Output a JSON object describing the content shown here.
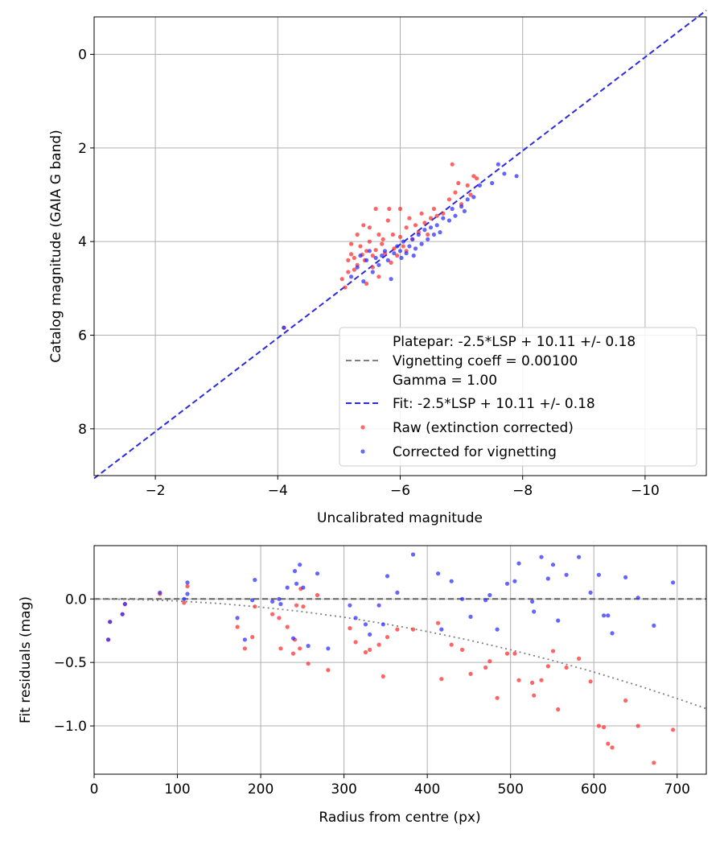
{
  "chart_data": [
    {
      "type": "scatter",
      "xlabel": "Uncalibrated magnitude",
      "ylabel": "Catalog magnitude (GAIA G band)",
      "xlim": [
        -1.0,
        -11.0
      ],
      "ylim": [
        9.0,
        -0.8
      ],
      "xticks": [
        -2,
        -4,
        -6,
        -8,
        -10
      ],
      "yticks": [
        0,
        2,
        4,
        6,
        8
      ],
      "xtick_labels": [
        "−2",
        "−4",
        "−6",
        "−8",
        "−10"
      ],
      "ytick_labels": [
        "0",
        "2",
        "4",
        "6",
        "8"
      ],
      "grid": true,
      "legend_position": "lower-right",
      "legend": [
        {
          "label": "Platepar: -2.5*LSP + 10.11 +/- 0.18",
          "kind": "none",
          "color": "#ffffff"
        },
        {
          "label": "Vignetting coeff = 0.00100",
          "kind": "dash",
          "color": "#808080"
        },
        {
          "label": "Gamma = 1.00",
          "kind": "none",
          "color": "#ffffff"
        },
        {
          "label": "Fit: -2.5*LSP + 10.11 +/- 0.18",
          "kind": "dash",
          "color": "#2a2ae0"
        },
        {
          "label": "Raw (extinction corrected)",
          "kind": "dot",
          "color": "#ff2a2a"
        },
        {
          "label": "Corrected for vignetting",
          "kind": "dot",
          "color": "#2a2aff"
        }
      ],
      "lines": [
        {
          "name": "Fit",
          "x": [
            -1.0,
            -11.0
          ],
          "y": [
            9.06,
            -0.94
          ],
          "color": "#2a2ae0"
        }
      ],
      "series": [
        {
          "name": "Raw (extinction corrected)",
          "color": "#ff2a2a",
          "points": [
            [
              -4.1,
              5.84
            ],
            [
              -5.05,
              4.8
            ],
            [
              -5.1,
              4.98
            ],
            [
              -5.15,
              4.65
            ],
            [
              -5.15,
              4.4
            ],
            [
              -5.2,
              4.27
            ],
            [
              -5.2,
              4.05
            ],
            [
              -5.25,
              4.35
            ],
            [
              -5.25,
              4.6
            ],
            [
              -5.3,
              3.85
            ],
            [
              -5.3,
              4.5
            ],
            [
              -5.35,
              4.1
            ],
            [
              -5.38,
              4.28
            ],
            [
              -5.4,
              3.65
            ],
            [
              -5.42,
              4.4
            ],
            [
              -5.45,
              4.2
            ],
            [
              -5.45,
              4.9
            ],
            [
              -5.5,
              4.0
            ],
            [
              -5.5,
              3.7
            ],
            [
              -5.55,
              4.55
            ],
            [
              -5.55,
              4.3
            ],
            [
              -5.6,
              3.3
            ],
            [
              -5.6,
              4.18
            ],
            [
              -5.65,
              3.85
            ],
            [
              -5.65,
              4.75
            ],
            [
              -5.7,
              4.05
            ],
            [
              -5.72,
              3.95
            ],
            [
              -5.75,
              4.25
            ],
            [
              -5.8,
              3.55
            ],
            [
              -5.82,
              3.3
            ],
            [
              -5.85,
              4.45
            ],
            [
              -5.88,
              3.85
            ],
            [
              -5.9,
              4.15
            ],
            [
              -5.95,
              4.3
            ],
            [
              -6.0,
              3.9
            ],
            [
              -6.0,
              3.3
            ],
            [
              -6.05,
              4.1
            ],
            [
              -6.1,
              3.7
            ],
            [
              -6.1,
              4.2
            ],
            [
              -6.15,
              3.5
            ],
            [
              -6.2,
              3.95
            ],
            [
              -6.25,
              3.65
            ],
            [
              -6.3,
              3.8
            ],
            [
              -6.35,
              3.4
            ],
            [
              -6.4,
              3.6
            ],
            [
              -6.45,
              3.85
            ],
            [
              -6.5,
              3.5
            ],
            [
              -6.55,
              3.3
            ],
            [
              -6.6,
              3.45
            ],
            [
              -6.7,
              3.4
            ],
            [
              -6.8,
              3.1
            ],
            [
              -6.85,
              2.35
            ],
            [
              -6.9,
              2.95
            ],
            [
              -6.95,
              2.75
            ],
            [
              -7.0,
              3.2
            ],
            [
              -7.1,
              2.8
            ],
            [
              -7.15,
              3.0
            ],
            [
              -7.2,
              2.6
            ],
            [
              -7.25,
              2.65
            ]
          ]
        },
        {
          "name": "Corrected for vignetting",
          "color": "#2a2aff",
          "points": [
            [
              -4.1,
              5.84
            ],
            [
              -5.2,
              4.75
            ],
            [
              -5.3,
              4.55
            ],
            [
              -5.35,
              4.3
            ],
            [
              -5.4,
              4.85
            ],
            [
              -5.45,
              4.4
            ],
            [
              -5.5,
              4.2
            ],
            [
              -5.55,
              4.65
            ],
            [
              -5.6,
              4.35
            ],
            [
              -5.65,
              4.5
            ],
            [
              -5.7,
              4.3
            ],
            [
              -5.75,
              4.2
            ],
            [
              -5.8,
              4.4
            ],
            [
              -5.85,
              4.8
            ],
            [
              -5.9,
              4.25
            ],
            [
              -5.95,
              4.1
            ],
            [
              -6.0,
              4.2
            ],
            [
              -6.02,
              4.35
            ],
            [
              -6.05,
              4.0
            ],
            [
              -6.1,
              4.25
            ],
            [
              -6.15,
              4.1
            ],
            [
              -6.2,
              3.95
            ],
            [
              -6.22,
              4.3
            ],
            [
              -6.25,
              4.15
            ],
            [
              -6.3,
              3.85
            ],
            [
              -6.35,
              4.05
            ],
            [
              -6.4,
              3.75
            ],
            [
              -6.45,
              3.95
            ],
            [
              -6.5,
              3.7
            ],
            [
              -6.55,
              3.85
            ],
            [
              -6.6,
              3.65
            ],
            [
              -6.65,
              3.8
            ],
            [
              -6.7,
              3.5
            ],
            [
              -6.8,
              3.55
            ],
            [
              -6.85,
              3.3
            ],
            [
              -6.9,
              3.45
            ],
            [
              -7.0,
              3.25
            ],
            [
              -7.05,
              3.35
            ],
            [
              -7.1,
              3.1
            ],
            [
              -7.2,
              3.05
            ],
            [
              -7.3,
              2.8
            ],
            [
              -7.5,
              2.75
            ],
            [
              -7.6,
              2.35
            ],
            [
              -7.7,
              2.55
            ],
            [
              -7.9,
              2.6
            ]
          ]
        }
      ]
    },
    {
      "type": "scatter",
      "xlabel": "Radius from centre (px)",
      "ylabel": "Fit residuals (mag)",
      "xlim": [
        0,
        735
      ],
      "ylim": [
        -1.38,
        0.42
      ],
      "xticks": [
        0,
        100,
        200,
        300,
        400,
        500,
        600,
        700
      ],
      "yticks": [
        0.0,
        -0.5,
        -1.0
      ],
      "xtick_labels": [
        "0",
        "100",
        "200",
        "300",
        "400",
        "500",
        "600",
        "700"
      ],
      "ytick_labels": [
        "0.0",
        "−0.5",
        "−1.0"
      ],
      "grid": true,
      "lines": [
        {
          "name": "zero",
          "x": [
            0,
            735
          ],
          "y": [
            0,
            0
          ],
          "color": "#606060",
          "style": "dashed"
        },
        {
          "name": "vignetting model",
          "x": [
            0,
            50,
            100,
            150,
            200,
            250,
            300,
            350,
            400,
            450,
            500,
            550,
            600,
            650,
            700,
            735
          ],
          "y": [
            0,
            -0.004,
            -0.016,
            -0.036,
            -0.064,
            -0.1,
            -0.144,
            -0.196,
            -0.256,
            -0.324,
            -0.4,
            -0.484,
            -0.576,
            -0.676,
            -0.784,
            -0.864
          ],
          "color": "#808080",
          "style": "dotted"
        }
      ],
      "series": [
        {
          "name": "Raw",
          "color": "#ff2a2a",
          "points": [
            [
              17,
              -0.32
            ],
            [
              19,
              -0.18
            ],
            [
              34,
              -0.12
            ],
            [
              37,
              -0.04
            ],
            [
              79,
              0.04
            ],
            [
              108,
              -0.03
            ],
            [
              112,
              0.1
            ],
            [
              172,
              -0.22
            ],
            [
              181,
              -0.39
            ],
            [
              190,
              -0.3
            ],
            [
              193,
              -0.06
            ],
            [
              214,
              -0.12
            ],
            [
              222,
              -0.15
            ],
            [
              224,
              -0.39
            ],
            [
              232,
              -0.22
            ],
            [
              239,
              -0.43
            ],
            [
              241,
              -0.32
            ],
            [
              243,
              -0.05
            ],
            [
              247,
              -0.39
            ],
            [
              248,
              0.08
            ],
            [
              251,
              -0.06
            ],
            [
              257,
              -0.51
            ],
            [
              268,
              0.03
            ],
            [
              281,
              -0.56
            ],
            [
              307,
              -0.23
            ],
            [
              314,
              -0.34
            ],
            [
              326,
              -0.42
            ],
            [
              331,
              -0.4
            ],
            [
              342,
              -0.36
            ],
            [
              347,
              -0.61
            ],
            [
              352,
              -0.3
            ],
            [
              364,
              -0.24
            ],
            [
              383,
              -0.24
            ],
            [
              413,
              -0.19
            ],
            [
              417,
              -0.63
            ],
            [
              429,
              -0.36
            ],
            [
              442,
              -0.4
            ],
            [
              452,
              -0.59
            ],
            [
              470,
              -0.54
            ],
            [
              475,
              -0.49
            ],
            [
              484,
              -0.78
            ],
            [
              496,
              -0.43
            ],
            [
              505,
              -0.43
            ],
            [
              510,
              -0.64
            ],
            [
              526,
              -0.66
            ],
            [
              528,
              -0.76
            ],
            [
              537,
              -0.64
            ],
            [
              545,
              -0.53
            ],
            [
              551,
              -0.41
            ],
            [
              557,
              -0.87
            ],
            [
              567,
              -0.54
            ],
            [
              582,
              -0.47
            ],
            [
              596,
              -0.65
            ],
            [
              606,
              -1.0
            ],
            [
              612,
              -1.01
            ],
            [
              617,
              -1.14
            ],
            [
              622,
              -1.17
            ],
            [
              638,
              -0.8
            ],
            [
              653,
              -1.0
            ],
            [
              672,
              -1.29
            ],
            [
              695,
              -1.03
            ]
          ]
        },
        {
          "name": "Corrected",
          "color": "#2a2aff",
          "points": [
            [
              17,
              -0.32
            ],
            [
              19,
              -0.18
            ],
            [
              34,
              -0.12
            ],
            [
              37,
              -0.04
            ],
            [
              79,
              0.05
            ],
            [
              108,
              0.0
            ],
            [
              112,
              0.13
            ],
            [
              112,
              0.04
            ],
            [
              172,
              -0.15
            ],
            [
              181,
              -0.32
            ],
            [
              190,
              -0.01
            ],
            [
              193,
              0.15
            ],
            [
              214,
              -0.02
            ],
            [
              222,
              0.0
            ],
            [
              224,
              -0.04
            ],
            [
              232,
              0.09
            ],
            [
              239,
              -0.31
            ],
            [
              241,
              0.22
            ],
            [
              243,
              0.12
            ],
            [
              247,
              0.27
            ],
            [
              251,
              0.09
            ],
            [
              257,
              -0.37
            ],
            [
              268,
              0.2
            ],
            [
              281,
              -0.39
            ],
            [
              307,
              -0.05
            ],
            [
              314,
              -0.15
            ],
            [
              326,
              -0.2
            ],
            [
              331,
              -0.28
            ],
            [
              342,
              -0.05
            ],
            [
              347,
              -0.2
            ],
            [
              352,
              0.18
            ],
            [
              364,
              0.05
            ],
            [
              383,
              0.35
            ],
            [
              413,
              0.2
            ],
            [
              417,
              -0.24
            ],
            [
              429,
              0.14
            ],
            [
              442,
              0.0
            ],
            [
              452,
              -0.14
            ],
            [
              470,
              -0.01
            ],
            [
              475,
              0.03
            ],
            [
              484,
              -0.24
            ],
            [
              496,
              0.12
            ],
            [
              505,
              0.14
            ],
            [
              510,
              0.28
            ],
            [
              526,
              -0.02
            ],
            [
              528,
              -0.1
            ],
            [
              537,
              0.33
            ],
            [
              545,
              0.16
            ],
            [
              551,
              0.27
            ],
            [
              557,
              -0.17
            ],
            [
              567,
              0.19
            ],
            [
              582,
              0.33
            ],
            [
              596,
              0.05
            ],
            [
              606,
              0.19
            ],
            [
              612,
              -0.13
            ],
            [
              617,
              -0.13
            ],
            [
              622,
              -0.27
            ],
            [
              638,
              0.17
            ],
            [
              653,
              0.01
            ],
            [
              672,
              -0.21
            ],
            [
              695,
              0.13
            ]
          ]
        }
      ]
    }
  ]
}
